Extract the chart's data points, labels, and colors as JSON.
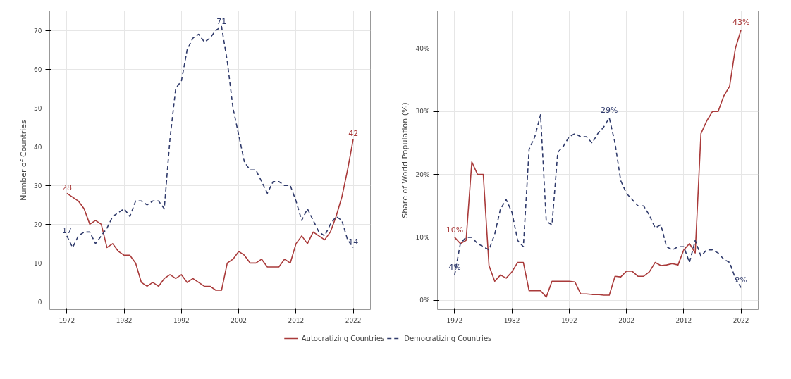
{
  "chart_data": [
    {
      "type": "line",
      "ylabel": "Number of Countries",
      "x": [
        1972,
        1973,
        1974,
        1975,
        1976,
        1977,
        1978,
        1979,
        1980,
        1981,
        1982,
        1983,
        1984,
        1985,
        1986,
        1987,
        1988,
        1989,
        1990,
        1991,
        1992,
        1993,
        1994,
        1995,
        1996,
        1997,
        1998,
        1999,
        2000,
        2001,
        2002,
        2003,
        2004,
        2005,
        2006,
        2007,
        2008,
        2009,
        2010,
        2011,
        2012,
        2013,
        2014,
        2015,
        2016,
        2017,
        2018,
        2019,
        2020,
        2021,
        2022
      ],
      "series": [
        {
          "name": "Autocratizing Countries",
          "color": "#a93a3a",
          "line_style": "solid",
          "values": [
            28,
            27,
            26,
            24,
            20,
            21,
            20,
            14,
            15,
            13,
            12,
            12,
            10,
            5,
            4,
            5,
            4,
            6,
            7,
            6,
            7,
            5,
            6,
            5,
            4,
            4,
            3,
            3,
            10,
            11,
            13,
            12,
            10,
            10,
            11,
            9,
            9,
            9,
            11,
            10,
            15,
            17,
            15,
            18,
            17,
            16,
            18,
            22,
            27,
            34,
            42
          ]
        },
        {
          "name": "Democratizing Countries",
          "color": "#2f3a6b",
          "line_style": "dashed",
          "values": [
            17,
            14,
            17,
            18,
            18,
            15,
            17,
            19,
            22,
            23,
            24,
            22,
            26,
            26,
            25,
            26,
            26,
            24,
            42,
            55,
            57,
            65,
            68,
            69,
            67,
            68,
            70,
            71,
            62,
            50,
            43,
            36,
            34,
            34,
            31,
            28,
            31,
            31,
            30,
            30,
            26,
            21,
            24,
            21,
            18,
            17,
            20,
            22,
            21,
            16,
            14
          ]
        }
      ],
      "xlim": [
        1969,
        2025
      ],
      "xticks": [
        1972,
        1982,
        1992,
        2002,
        2012,
        2022
      ],
      "ylim": [
        -2,
        75
      ],
      "yticks": [
        0,
        10,
        20,
        30,
        40,
        50,
        60,
        70
      ],
      "grid": true,
      "legend": "bottom",
      "annotations": [
        {
          "text": "28",
          "x": 1972,
          "y": 28
        },
        {
          "text": "17",
          "x": 1972,
          "y": 17
        },
        {
          "text": "71",
          "x": 1999,
          "y": 71
        },
        {
          "text": "42",
          "x": 2022,
          "y": 42
        },
        {
          "text": "14",
          "x": 2022,
          "y": 14
        }
      ]
    },
    {
      "type": "line",
      "ylabel": "Share of World Population (%)",
      "x": [
        1972,
        1973,
        1974,
        1975,
        1976,
        1977,
        1978,
        1979,
        1980,
        1981,
        1982,
        1983,
        1984,
        1985,
        1986,
        1987,
        1988,
        1989,
        1990,
        1991,
        1992,
        1993,
        1994,
        1995,
        1996,
        1997,
        1998,
        1999,
        2000,
        2001,
        2002,
        2003,
        2004,
        2005,
        2006,
        2007,
        2008,
        2009,
        2010,
        2011,
        2012,
        2013,
        2014,
        2015,
        2016,
        2017,
        2018,
        2019,
        2020,
        2021,
        2022
      ],
      "series": [
        {
          "color": "#a93a3a",
          "line_style": "solid",
          "values": [
            10,
            9,
            9.5,
            22,
            20,
            20,
            5.5,
            3,
            4,
            3.5,
            4.5,
            6,
            6,
            1.5,
            1.5,
            1.5,
            0.5,
            3,
            3,
            3,
            3,
            2.9,
            1,
            1,
            0.9,
            0.9,
            0.8,
            0.8,
            3.8,
            3.7,
            4.6,
            4.6,
            3.8,
            3.8,
            4.5,
            6,
            5.5,
            5.6,
            5.8,
            5.6,
            8,
            9,
            7.5,
            26.5,
            28.5,
            30,
            30,
            32.5,
            34,
            40,
            43
          ]
        },
        {
          "color": "#2f3a6b",
          "line_style": "dashed",
          "values": [
            4,
            9,
            10,
            10,
            9,
            8.5,
            8,
            10.5,
            14.5,
            16,
            14,
            9.5,
            8.5,
            24,
            26,
            29.5,
            12.5,
            12,
            23.5,
            24.5,
            26,
            26.5,
            26,
            26,
            25,
            26.5,
            27.5,
            29,
            25,
            19,
            17,
            16,
            15,
            15,
            13.5,
            11.5,
            12,
            8.5,
            8,
            8.5,
            8.5,
            6,
            9.5,
            7,
            8,
            8,
            7.5,
            6.5,
            6,
            3.5,
            2
          ]
        }
      ],
      "xlim": [
        1969,
        2025
      ],
      "xticks": [
        1972,
        1982,
        1992,
        2002,
        2012,
        2022
      ],
      "ylim": [
        -1.5,
        46
      ],
      "yticks": [
        {
          "value": 0,
          "label": "0%"
        },
        {
          "value": 10,
          "label": "10%"
        },
        {
          "value": 20,
          "label": "20%"
        },
        {
          "value": 30,
          "label": "30%"
        },
        {
          "value": 40,
          "label": "40%"
        }
      ],
      "grid": true,
      "annotations": [
        {
          "text": "10%",
          "x": 1972,
          "y": 10
        },
        {
          "text": "4%",
          "x": 1972,
          "y": 4
        },
        {
          "text": "29%",
          "x": 1999,
          "y": 29
        },
        {
          "text": "43%",
          "x": 2022,
          "y": 43
        },
        {
          "text": "2%",
          "x": 2022,
          "y": 2
        }
      ]
    }
  ]
}
